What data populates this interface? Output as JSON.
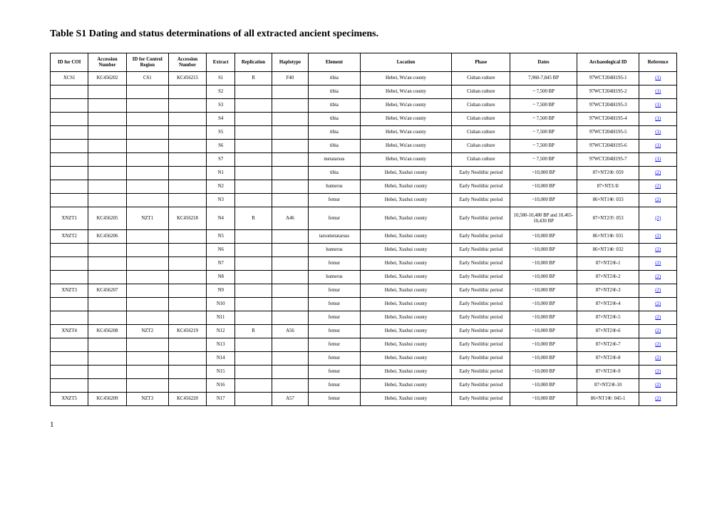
{
  "title": "Table S1 Dating and status determinations of all extracted ancient specimens.",
  "pageNumber": "1",
  "columns": [
    "ID for COI",
    "Accession Number",
    "ID for Control Region",
    "Accession Number",
    "Extract",
    "Replication",
    "Haplotype",
    "Element",
    "Location",
    "Phase",
    "Dates",
    "Archaeological ID",
    "Reference"
  ],
  "rows": [
    [
      "XCS1",
      "KC456202",
      "CS1",
      "KC456215",
      "S1",
      "R",
      "F40",
      "tibia",
      "Hebei, Wu'an county",
      "Cishan culture",
      "7,960-7,845 BP",
      "97WCT204H195-1",
      "(1)"
    ],
    [
      "",
      "",
      "",
      "",
      "S2",
      "",
      "",
      "tibia",
      "Hebei, Wu'an county",
      "Cishan culture",
      "~ 7,500 BP",
      "97WCT204H195-2",
      "(1)"
    ],
    [
      "",
      "",
      "",
      "",
      "S3",
      "",
      "",
      "tibia",
      "Hebei, Wu'an county",
      "Cishan culture",
      "~ 7,500 BP",
      "97WCT204H195-3",
      "(1)"
    ],
    [
      "",
      "",
      "",
      "",
      "S4",
      "",
      "",
      "tibia",
      "Hebei, Wu'an county",
      "Cishan culture",
      "~ 7,500 BP",
      "97WCT204H195-4",
      "(1)"
    ],
    [
      "",
      "",
      "",
      "",
      "S5",
      "",
      "",
      "tibia",
      "Hebei, Wu'an county",
      "Cishan culture",
      "~ 7,500 BP",
      "97WCT204H195-5",
      "(1)"
    ],
    [
      "",
      "",
      "",
      "",
      "S6",
      "",
      "",
      "tibia",
      "Hebei, Wu'an county",
      "Cishan culture",
      "~ 7,500 BP",
      "97WCT204H195-6",
      "(1)"
    ],
    [
      "",
      "",
      "",
      "",
      "S7",
      "",
      "",
      "metatarsus",
      "Hebei, Wu'an county",
      "Cishan culture",
      "~ 7,500 BP",
      "97WCT204H195-7",
      "(1)"
    ],
    [
      "",
      "",
      "",
      "",
      "N1",
      "",
      "",
      "tibia",
      "Hebei, Xushui county",
      "Early Neolithic period",
      "~10,000 BP",
      "87×NT2④: 059",
      "(2)"
    ],
    [
      "",
      "",
      "",
      "",
      "N2",
      "",
      "",
      "humerus",
      "Hebei, Xushui county",
      "Early Neolithic period",
      "~10,000 BP",
      "87×NT3:①",
      "(2)"
    ],
    [
      "",
      "",
      "",
      "",
      "N3",
      "",
      "",
      "femur",
      "Hebei, Xushui county",
      "Early Neolithic period",
      "~10,000 BP",
      "86×NT1⑥: 033",
      "(2)"
    ],
    [
      "XNZT1",
      "KC456205",
      "NZT1",
      "KC456218",
      "N4",
      "R",
      "A46",
      "femur",
      "Hebei, Xushui county",
      "Early Neolithic period",
      "10,580-10,480 BP and 10,465-10,430 BP",
      "87×NT2⑦: 053",
      "(2)"
    ],
    [
      "XNZT2",
      "KC456206",
      "",
      "",
      "N5",
      "",
      "",
      "tarsometatarsus",
      "Hebei, Xushui county",
      "Early Neolithic period",
      "~10,000 BP",
      "86×NT1⑥: 031",
      "(2)"
    ],
    [
      "",
      "",
      "",
      "",
      "N6",
      "",
      "",
      "humerus",
      "Hebei, Xushui county",
      "Early Neolithic period",
      "~10,000 BP",
      "86×NT1⑥: 032",
      "(2)"
    ],
    [
      "",
      "",
      "",
      "",
      "N7",
      "",
      "",
      "femur",
      "Hebei, Xushui county",
      "Early Neolithic period",
      "~10,000 BP",
      "87×NT2④-1",
      "(2)"
    ],
    [
      "",
      "",
      "",
      "",
      "N8",
      "",
      "",
      "humerus",
      "Hebei, Xushui county",
      "Early Neolithic period",
      "~10,000 BP",
      "87×NT2④-2",
      "(2)"
    ],
    [
      "XNZT3",
      "KC456207",
      "",
      "",
      "N9",
      "",
      "",
      "femur",
      "Hebei, Xushui county",
      "Early Neolithic period",
      "~10,000 BP",
      "87×NT2④-3",
      "(2)"
    ],
    [
      "",
      "",
      "",
      "",
      "N10",
      "",
      "",
      "femur",
      "Hebei, Xushui county",
      "Early Neolithic period",
      "~10,000 BP",
      "87×NT2④-4",
      "(2)"
    ],
    [
      "",
      "",
      "",
      "",
      "N11",
      "",
      "",
      "femur",
      "Hebei, Xushui county",
      "Early Neolithic period",
      "~10,000 BP",
      "87×NT2④-5",
      "(2)"
    ],
    [
      "XNZT4",
      "KC456208",
      "NZT2",
      "KC456219",
      "N12",
      "R",
      "A56",
      "femur",
      "Hebei, Xushui county",
      "Early Neolithic period",
      "~10,000 BP",
      "87×NT2④-6",
      "(2)"
    ],
    [
      "",
      "",
      "",
      "",
      "N13",
      "",
      "",
      "femur",
      "Hebei, Xushui county",
      "Early Neolithic period",
      "~10,000 BP",
      "87×NT2④-7",
      "(2)"
    ],
    [
      "",
      "",
      "",
      "",
      "N14",
      "",
      "",
      "femur",
      "Hebei, Xushui county",
      "Early Neolithic period",
      "~10,000 BP",
      "87×NT2④-8",
      "(2)"
    ],
    [
      "",
      "",
      "",
      "",
      "N15",
      "",
      "",
      "femur",
      "Hebei, Xushui county",
      "Early Neolithic period",
      "~10,000 BP",
      "87×NT2④-9",
      "(2)"
    ],
    [
      "",
      "",
      "",
      "",
      "N16",
      "",
      "",
      "femur",
      "Hebei, Xushui county",
      "Early Neolithic period",
      "~10,000 BP",
      "87×NT2④-10",
      "(2)"
    ],
    [
      "XNZT5",
      "KC456209",
      "NZT3",
      "KC456220",
      "N17",
      "",
      "A57",
      "femur",
      "Hebei, Xushui county",
      "Early Neolithic period",
      "~10,000 BP",
      "86×NT1⑥: 045-1",
      "(2)"
    ]
  ]
}
